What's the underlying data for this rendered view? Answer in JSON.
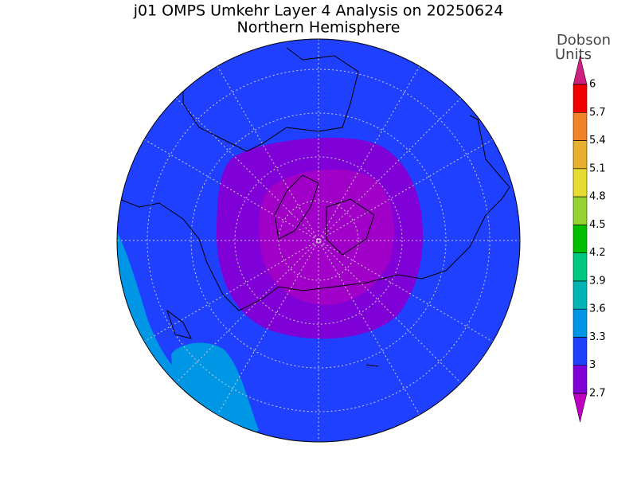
{
  "header": {
    "title": "j01 OMPS Umkehr Layer 4 Analysis on 20250624",
    "subtitle": "Northern Hemisphere"
  },
  "colorbar": {
    "label_lines": [
      "Dobson",
      "Units"
    ],
    "ticks": [
      2.7,
      3,
      3.3,
      3.6,
      3.9,
      4.2,
      4.5,
      4.8,
      5.1,
      5.4,
      5.7,
      6
    ],
    "colors": [
      "#8000d8",
      "#2040ff",
      "#0096e6",
      "#00b4b4",
      "#00c882",
      "#00c000",
      "#96d232",
      "#e6dc32",
      "#e6af2d",
      "#f08228",
      "#f00000"
    ],
    "under_color": "#c000c0",
    "over_color": "#d0207f"
  }
}
